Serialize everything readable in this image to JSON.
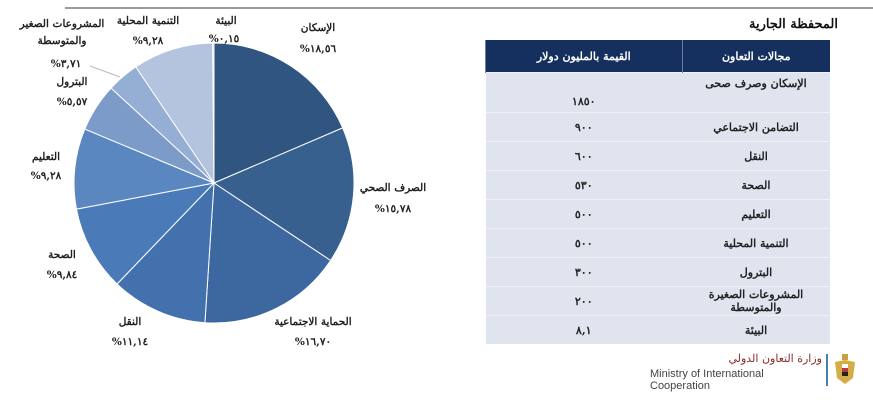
{
  "chart_data": {
    "type": "pie",
    "title": "",
    "slices": [
      {
        "label": "الإسكان",
        "value": 18.56,
        "pct_label": "%١٨,٥٦",
        "color": "#2f5580"
      },
      {
        "label": "الصرف الصحي",
        "value": 15.78,
        "pct_label": "%١٥,٧٨",
        "color": "#37608f"
      },
      {
        "label": "الحماية الاجتماعية",
        "value": 16.7,
        "pct_label": "%١٦,٧٠",
        "color": "#3c679f"
      },
      {
        "label": "النقل",
        "value": 11.14,
        "pct_label": "%١١,١٤",
        "color": "#4371ad"
      },
      {
        "label": "الصحة",
        "value": 9.84,
        "pct_label": "%٩,٨٤",
        "color": "#4a7ab8"
      },
      {
        "label": "التعليم",
        "value": 9.28,
        "pct_label": "%٩,٢٨",
        "color": "#5a87c0"
      },
      {
        "label": "البترول",
        "value": 5.57,
        "pct_label": "%٥,٥٧",
        "color": "#7c9bc8"
      },
      {
        "label": "المشروعات الصغير والمتوسطة",
        "value": 3.71,
        "pct_label": "%٣,٧١",
        "color": "#95aed4"
      },
      {
        "label": "التنمية المحلية",
        "value": 9.28,
        "pct_label": "%٩,٢٨",
        "color": "#b4c4de"
      },
      {
        "label": "البيئة",
        "value": 0.15,
        "pct_label": "%٠,١٥",
        "color": "#c8d4e7"
      }
    ],
    "legend": "none"
  },
  "table": {
    "title": "المحفظة الجارية",
    "headers": [
      "مجالات التعاون",
      "القيمة بالمليون دولار"
    ],
    "rows": [
      {
        "category": "الإسكان وصرف صحى",
        "value": "١٨٥٠"
      },
      {
        "category": "التضامن الاجتماعي",
        "value": "٩٠٠"
      },
      {
        "category": "النقل",
        "value": "٦٠٠"
      },
      {
        "category": "الصحة",
        "value": "٥٣٠"
      },
      {
        "category": "التعليم",
        "value": "٥٠٠"
      },
      {
        "category": "التنمية المحلية",
        "value": "٥٠٠"
      },
      {
        "category": "البترول",
        "value": "٣٠٠"
      },
      {
        "category": "المشروعات الصغيرة والمتوسطة",
        "value": "٢٠٠"
      },
      {
        "category": "البيئة",
        "value": "٨,١"
      }
    ]
  },
  "footer": {
    "logo_ar": "وزارة التعاون الدولي",
    "logo_en": "Ministry of International Cooperation"
  }
}
